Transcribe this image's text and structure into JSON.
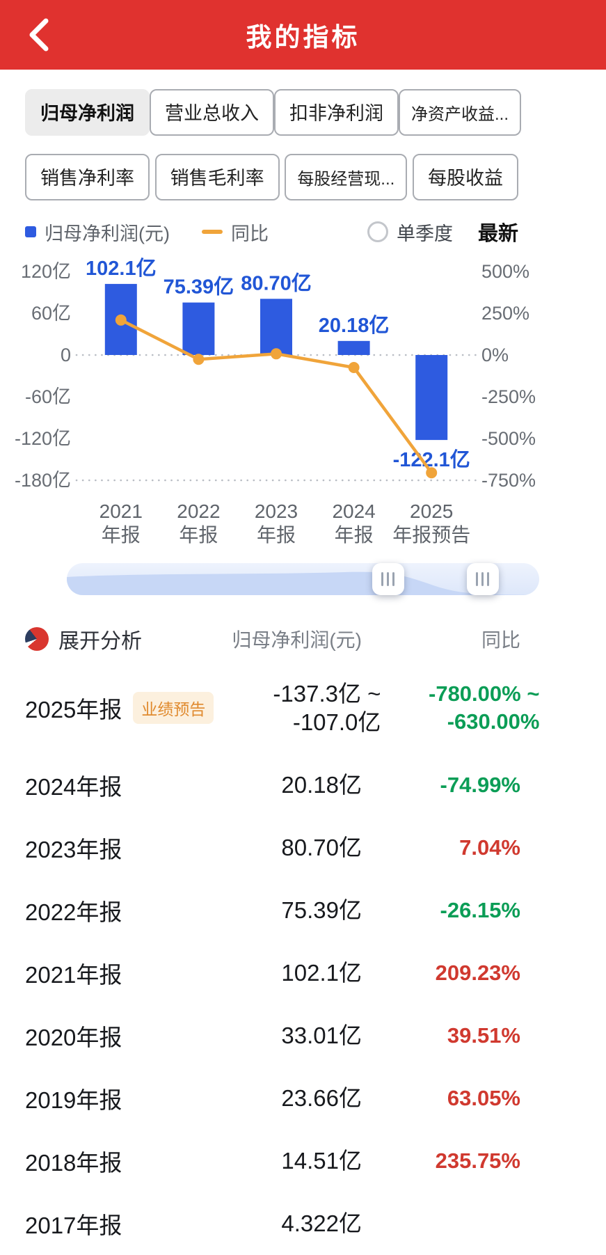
{
  "header": {
    "title": "我的指标"
  },
  "tabs": {
    "row1": [
      {
        "label": "归母净利润",
        "active": true
      },
      {
        "label": "营业总收入",
        "active": false
      },
      {
        "label": "扣非净利润",
        "active": false
      },
      {
        "label": "净资产收益...",
        "active": false
      }
    ],
    "row2": [
      {
        "label": "销售净利率",
        "active": false
      },
      {
        "label": "销售毛利率",
        "active": false
      },
      {
        "label": "每股经营现...",
        "active": false
      },
      {
        "label": "每股收益",
        "active": false
      }
    ]
  },
  "legend": {
    "bar_label": "归母净利润(元)",
    "line_label": "同比",
    "quarter_label": "单季度",
    "latest_label": "最新"
  },
  "chart_data": {
    "type": "bar+line",
    "categories": [
      [
        "2021",
        "年报"
      ],
      [
        "2022",
        "年报"
      ],
      [
        "2023",
        "年报"
      ],
      [
        "2024",
        "年报"
      ],
      [
        "2025",
        "年报预告"
      ]
    ],
    "bar_series": {
      "name": "归母净利润(元)",
      "unit": "亿",
      "values": [
        102.1,
        75.39,
        80.7,
        20.18,
        -122.1
      ],
      "labels": [
        "102.1亿",
        "75.39亿",
        "80.70亿",
        "20.18亿",
        "-122.1亿"
      ],
      "color": "#2e5be0"
    },
    "line_series": {
      "name": "同比",
      "unit": "%",
      "values": [
        209.23,
        -26.15,
        7.04,
        -74.99,
        -705
      ],
      "color": "#f0a43a"
    },
    "left_axis": {
      "ticks": [
        "120亿",
        "60亿",
        "0",
        "-60亿",
        "-120亿",
        "-180亿"
      ],
      "values": [
        120,
        60,
        0,
        -60,
        -120,
        -180
      ],
      "min": -180,
      "max": 120
    },
    "right_axis": {
      "ticks": [
        "500%",
        "250%",
        "0%",
        "-250%",
        "-500%",
        "-750%"
      ],
      "values": [
        500,
        250,
        0,
        -250,
        -500,
        -750
      ],
      "min": -750,
      "max": 500
    },
    "grid": "dotted-at-zero-and-bottom",
    "legend_position": "top-left"
  },
  "analysis": {
    "expand_label": "展开分析",
    "value_header": "归母净利润(元)",
    "yoy_header": "同比",
    "rows": [
      {
        "period": "2025年报",
        "badge": "业绩预告",
        "value": "-137.3亿 ~",
        "value2": "-107.0亿",
        "yoy": "-780.00% ~",
        "yoy2": "-630.00%",
        "trend": "down"
      },
      {
        "period": "2024年报",
        "value": "20.18亿",
        "yoy": "-74.99%",
        "trend": "down"
      },
      {
        "period": "2023年报",
        "value": "80.70亿",
        "yoy": "7.04%",
        "trend": "up"
      },
      {
        "period": "2022年报",
        "value": "75.39亿",
        "yoy": "-26.15%",
        "trend": "down"
      },
      {
        "period": "2021年报",
        "value": "102.1亿",
        "yoy": "209.23%",
        "trend": "up"
      },
      {
        "period": "2020年报",
        "value": "33.01亿",
        "yoy": "39.51%",
        "trend": "up"
      },
      {
        "period": "2019年报",
        "value": "23.66亿",
        "yoy": "63.05%",
        "trend": "up"
      },
      {
        "period": "2018年报",
        "value": "14.51亿",
        "yoy": "235.75%",
        "trend": "up"
      },
      {
        "period": "2017年报",
        "value": "4.322亿",
        "yoy": "",
        "trend": ""
      }
    ]
  },
  "colors": {
    "header_red": "#e0322f",
    "bar_blue": "#2e5be0",
    "line_orange": "#f0a43a",
    "up_red": "#d0392f",
    "down_green": "#0b9d56",
    "badge_orange": "#e08a2e"
  }
}
